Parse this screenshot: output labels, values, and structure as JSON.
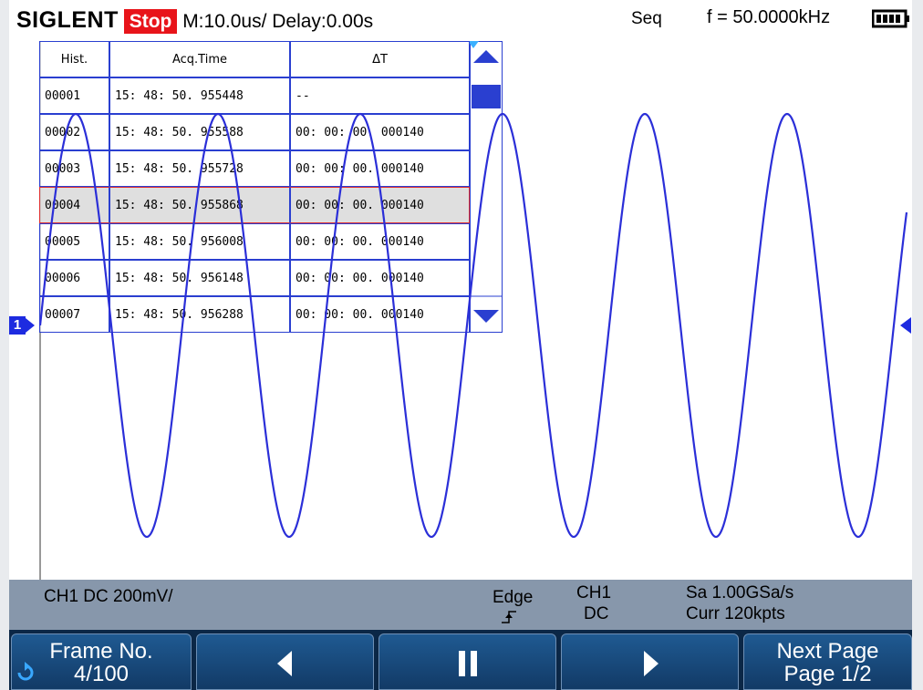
{
  "header": {
    "brand": "SIGLENT",
    "status": "Stop",
    "timebase": "M:10.0us/ Delay:0.00s",
    "mode": "Seq",
    "frequency": "f = 50.0000kHz"
  },
  "history_table": {
    "columns": [
      "Hist.",
      "Acq.Time",
      "ΔT"
    ],
    "rows": [
      [
        "00001",
        "15: 48: 50. 955448",
        "--"
      ],
      [
        "00002",
        "15: 48: 50. 955588",
        "00: 00: 00. 000140"
      ],
      [
        "00003",
        "15: 48: 50. 955728",
        "00: 00: 00. 000140"
      ],
      [
        "00004",
        "15: 48: 50. 955868",
        "00: 00: 00. 000140"
      ],
      [
        "00005",
        "15: 48: 50. 956008",
        "00: 00: 00. 000140"
      ],
      [
        "00006",
        "15: 48: 50. 956148",
        "00: 00: 00. 000140"
      ],
      [
        "00007",
        "15: 48: 50. 956288",
        "00: 00: 00. 000140"
      ]
    ]
  },
  "channel_marker": "1",
  "info_bar": {
    "channel": "CH1 DC 200mV/",
    "trigger_type": "Edge",
    "trigger_source": "CH1",
    "trigger_coupling": "DC",
    "sample_rate": "Sa 1.00GSa/s",
    "memory": "Curr 120kpts"
  },
  "softkeys": [
    {
      "label": "Frame No.",
      "value": "4/100"
    },
    {
      "label": "Next Page",
      "value": "Page 1/2"
    }
  ]
}
